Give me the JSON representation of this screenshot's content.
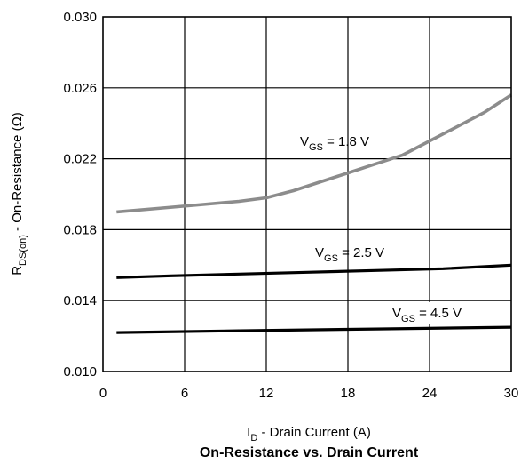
{
  "chart_data": {
    "type": "line",
    "title": "On-Resistance vs. Drain Current",
    "xlabel": {
      "main": "I",
      "sub": "D",
      "rest": " - Drain Current (A)"
    },
    "ylabel": {
      "main": "R",
      "sub": "DS(on)",
      "rest": " - On-Resistance (Ω)"
    },
    "xlim": [
      0,
      30
    ],
    "ylim": [
      0.01,
      0.03
    ],
    "xticks": [
      "0",
      "6",
      "12",
      "18",
      "24",
      "30"
    ],
    "yticks": [
      "0.010",
      "0.014",
      "0.018",
      "0.022",
      "0.026",
      "0.030"
    ],
    "grid": true,
    "series": [
      {
        "name": {
          "main": "V",
          "sub": "GS",
          "rest": " = 1.8 V"
        },
        "color": "#8c8c8c",
        "x": [
          1,
          4,
          7,
          10,
          12,
          14,
          16,
          18,
          20,
          22,
          24,
          26,
          28,
          30
        ],
        "y": [
          0.019,
          0.0192,
          0.0194,
          0.0196,
          0.0198,
          0.0202,
          0.0207,
          0.0212,
          0.0217,
          0.0222,
          0.023,
          0.0238,
          0.0246,
          0.0256
        ]
      },
      {
        "name": {
          "main": "V",
          "sub": "GS",
          "rest": " = 2.5 V"
        },
        "color": "#000000",
        "x": [
          1,
          5,
          10,
          15,
          20,
          25,
          30
        ],
        "y": [
          0.0153,
          0.0154,
          0.0155,
          0.0156,
          0.0157,
          0.0158,
          0.016
        ]
      },
      {
        "name": {
          "main": "V",
          "sub": "GS",
          "rest": " = 4.5 V"
        },
        "color": "#000000",
        "x": [
          1,
          10,
          20,
          30
        ],
        "y": [
          0.0122,
          0.0123,
          0.0124,
          0.0125
        ]
      }
    ]
  }
}
